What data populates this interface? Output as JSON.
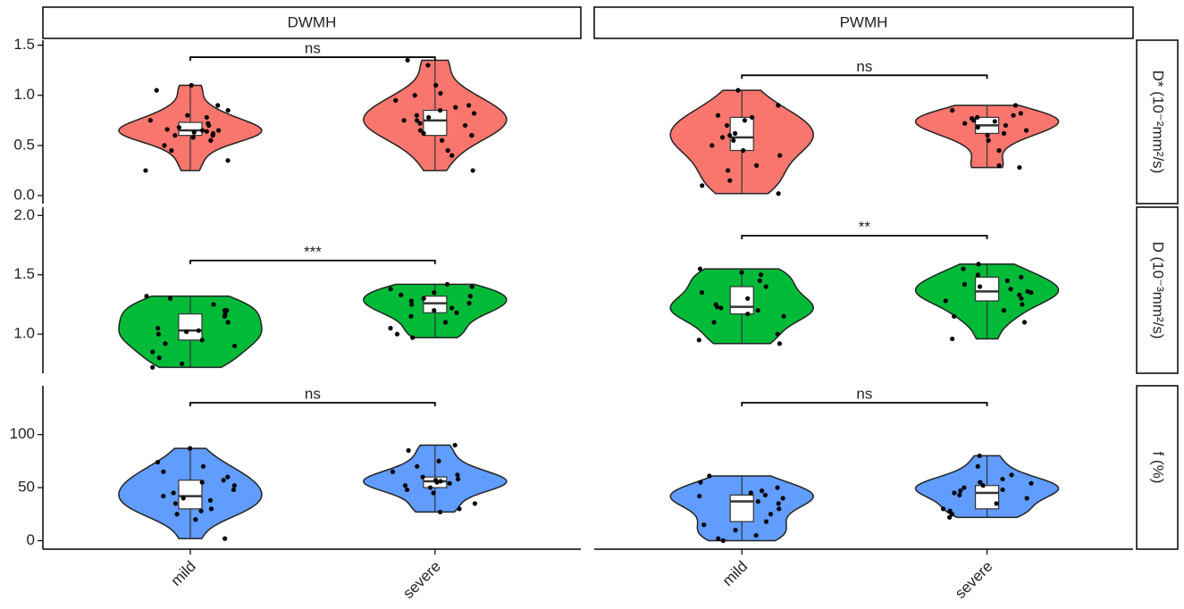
{
  "chart_data": {
    "type": "violin",
    "columns": [
      "DWMH",
      "PWMH"
    ],
    "categories": [
      "mild",
      "severe"
    ],
    "rows": [
      {
        "label": "D* (10⁻²mm²/s)",
        "color": "#f8766d",
        "ylim": [
          -0.08,
          1.55
        ],
        "yticks": [
          {
            "value": 0,
            "label": "0.0"
          },
          0.5,
          {
            "value": 1,
            "label": "1.0"
          },
          1.5
        ],
        "panels": [
          {
            "groups": [
              {
                "points": [
                  0.25,
                  0.35,
                  0.45,
                  0.5,
                  0.55,
                  0.58,
                  0.6,
                  0.6,
                  0.62,
                  0.63,
                  0.64,
                  0.65,
                  0.65,
                  0.66,
                  0.68,
                  0.7,
                  0.72,
                  0.75,
                  0.78,
                  0.8,
                  0.85,
                  0.9,
                  1.05,
                  1.1
                ],
                "box": {
                  "lower": 0.25,
                  "q1": 0.6,
                  "median": 0.65,
                  "q3": 0.73,
                  "upper": 1.1
                }
              },
              {
                "points": [
                  0.25,
                  0.4,
                  0.45,
                  0.55,
                  0.6,
                  0.6,
                  0.62,
                  0.65,
                  0.7,
                  0.72,
                  0.75,
                  0.75,
                  0.78,
                  0.8,
                  0.82,
                  0.85,
                  0.88,
                  0.9,
                  0.95,
                  1.0,
                  1.02,
                  1.1,
                  1.3,
                  1.35
                ],
                "box": {
                  "lower": 0.25,
                  "q1": 0.6,
                  "median": 0.75,
                  "q3": 0.85,
                  "upper": 1.35
                }
              }
            ],
            "bracket": {
              "y": 1.38,
              "label": "ns"
            }
          },
          {
            "groups": [
              {
                "points": [
                  0.02,
                  0.1,
                  0.15,
                  0.25,
                  0.3,
                  0.4,
                  0.45,
                  0.5,
                  0.55,
                  0.58,
                  0.6,
                  0.62,
                  0.7,
                  0.75,
                  0.78,
                  0.8,
                  0.9,
                  1.05
                ],
                "box": {
                  "lower": 0.02,
                  "q1": 0.45,
                  "median": 0.58,
                  "q3": 0.78,
                  "upper": 1.05
                }
              },
              {
                "points": [
                  0.28,
                  0.3,
                  0.45,
                  0.55,
                  0.6,
                  0.62,
                  0.65,
                  0.68,
                  0.7,
                  0.72,
                  0.74,
                  0.75,
                  0.77,
                  0.78,
                  0.8,
                  0.82,
                  0.85,
                  0.9
                ],
                "box": {
                  "lower": 0.28,
                  "q1": 0.62,
                  "median": 0.7,
                  "q3": 0.78,
                  "upper": 0.9
                }
              }
            ],
            "bracket": {
              "y": 1.2,
              "label": "ns"
            }
          }
        ]
      },
      {
        "label": "D (10⁻³mm²/s)",
        "color": "#00ba38",
        "ylim": [
          0.67,
          2.07
        ],
        "yticks": [
          {
            "value": 1,
            "label": "1.0"
          },
          1.5,
          {
            "value": 2,
            "label": "2.0"
          }
        ],
        "panels": [
          {
            "groups": [
              {
                "points": [
                  0.72,
                  0.75,
                  0.8,
                  0.85,
                  0.9,
                  0.92,
                  0.95,
                  1.0,
                  1.02,
                  1.03,
                  1.05,
                  1.1,
                  1.15,
                  1.17,
                  1.2,
                  1.2,
                  1.25,
                  1.3,
                  1.32
                ],
                "box": {
                  "lower": 0.72,
                  "q1": 0.95,
                  "median": 1.03,
                  "q3": 1.17,
                  "upper": 1.32
                }
              },
              {
                "points": [
                  0.97,
                  1.0,
                  1.05,
                  1.1,
                  1.15,
                  1.18,
                  1.2,
                  1.22,
                  1.25,
                  1.26,
                  1.28,
                  1.3,
                  1.32,
                  1.33,
                  1.35,
                  1.38,
                  1.4,
                  1.42
                ],
                "box": {
                  "lower": 0.97,
                  "q1": 1.18,
                  "median": 1.26,
                  "q3": 1.32,
                  "upper": 1.42
                }
              }
            ],
            "bracket": {
              "y": 1.62,
              "label": "***"
            }
          },
          {
            "groups": [
              {
                "points": [
                  0.92,
                  0.95,
                  1.0,
                  1.1,
                  1.15,
                  1.17,
                  1.2,
                  1.22,
                  1.23,
                  1.25,
                  1.3,
                  1.35,
                  1.4,
                  1.45,
                  1.5,
                  1.52,
                  1.55
                ],
                "box": {
                  "lower": 0.92,
                  "q1": 1.17,
                  "median": 1.23,
                  "q3": 1.4,
                  "upper": 1.55
                }
              },
              {
                "points": [
                  0.96,
                  1.1,
                  1.15,
                  1.2,
                  1.25,
                  1.28,
                  1.3,
                  1.33,
                  1.35,
                  1.36,
                  1.38,
                  1.4,
                  1.42,
                  1.45,
                  1.48,
                  1.5,
                  1.55,
                  1.59
                ],
                "box": {
                  "lower": 0.96,
                  "q1": 1.28,
                  "median": 1.36,
                  "q3": 1.48,
                  "upper": 1.59
                }
              }
            ],
            "bracket": {
              "y": 1.83,
              "label": "**"
            }
          }
        ]
      },
      {
        "label": "f (%)",
        "color": "#619cff",
        "ylim": [
          -8,
          146
        ],
        "yticks": [
          0,
          50,
          100
        ],
        "panels": [
          {
            "groups": [
              {
                "points": [
                  2,
                  20,
                  25,
                  28,
                  30,
                  35,
                  38,
                  40,
                  42,
                  45,
                  48,
                  52,
                  55,
                  57,
                  60,
                  65,
                  70,
                  74,
                  87
                ],
                "box": {
                  "lower": 2,
                  "q1": 30,
                  "median": 42,
                  "q3": 57,
                  "upper": 87
                }
              },
              {
                "points": [
                  27,
                  30,
                  35,
                  45,
                  48,
                  50,
                  52,
                  54,
                  55,
                  56,
                  57,
                  58,
                  60,
                  62,
                  65,
                  70,
                  75,
                  85,
                  90
                ],
                "box": {
                  "lower": 27,
                  "q1": 50,
                  "median": 56,
                  "q3": 60,
                  "upper": 90
                }
              }
            ],
            "bracket": {
              "y": 130,
              "label": "ns"
            }
          },
          {
            "groups": [
              {
                "points": [
                  0,
                  2,
                  5,
                  10,
                  15,
                  18,
                  25,
                  30,
                  35,
                  37,
                  40,
                  42,
                  43,
                  45,
                  47,
                  50,
                  55,
                  61
                ],
                "box": {
                  "lower": 0,
                  "q1": 18,
                  "median": 37,
                  "q3": 43,
                  "upper": 61
                }
              },
              {
                "points": [
                  22,
                  25,
                  28,
                  30,
                  35,
                  40,
                  43,
                  45,
                  47,
                  48,
                  50,
                  52,
                  54,
                  55,
                  58,
                  62,
                  70,
                  80
                ],
                "box": {
                  "lower": 22,
                  "q1": 30,
                  "median": 45,
                  "q3": 52,
                  "upper": 80
                }
              }
            ],
            "bracket": {
              "y": 130,
              "label": "ns"
            }
          }
        ]
      }
    ]
  }
}
